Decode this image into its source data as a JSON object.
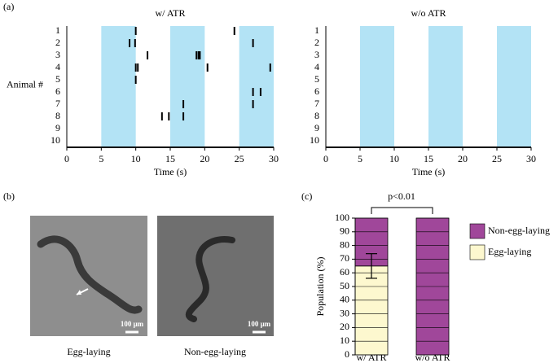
{
  "panel_labels": [
    "(a)",
    "(b)",
    "(c)"
  ],
  "images": [
    {
      "caption": "Egg-laying",
      "scale_bar": "100 μm"
    },
    {
      "caption": "Non-egg-laying",
      "scale_bar": "100 μm"
    }
  ],
  "chart_data": [
    {
      "type": "raster",
      "title": "w/ ATR",
      "xlabel": "Time (s)",
      "ylabel": "Animal #",
      "categories": [
        "1",
        "2",
        "3",
        "4",
        "5",
        "6",
        "7",
        "8",
        "9",
        "10"
      ],
      "events": [
        [
          10.0,
          24.3
        ],
        [
          9.1,
          9.9,
          27.0
        ],
        [
          11.7,
          18.8,
          19.1,
          19.3
        ],
        [
          10.0,
          10.3,
          20.4,
          29.5
        ],
        [
          10.0
        ],
        [
          27.0,
          28.1
        ],
        [
          16.9,
          27.0
        ],
        [
          13.8,
          14.8,
          16.9
        ],
        [],
        []
      ],
      "event_color": "#000000",
      "shaded": [
        [
          5,
          10
        ],
        [
          15,
          20
        ],
        [
          25,
          30
        ]
      ],
      "shade_color": "#b3e3f5",
      "xlim": [
        0,
        30
      ],
      "xticks": [
        0,
        5,
        10,
        15,
        20,
        25,
        30
      ]
    },
    {
      "type": "raster",
      "title": "w/o ATR",
      "xlabel": "Time (s)",
      "categories": [
        "1",
        "2",
        "3",
        "4",
        "5",
        "6",
        "7",
        "8",
        "9",
        "10"
      ],
      "events": [
        [],
        [],
        [],
        [],
        [],
        [],
        [],
        [],
        [],
        []
      ],
      "event_color": "#000000",
      "shaded": [
        [
          5,
          10
        ],
        [
          15,
          20
        ],
        [
          25,
          30
        ]
      ],
      "shade_color": "#b3e3f5",
      "xlim": [
        0,
        30
      ],
      "xticks": [
        0,
        5,
        10,
        15,
        20,
        25,
        30
      ]
    },
    {
      "type": "stacked_bar",
      "ylabel": "Population (%)",
      "annotation": "p<0.01",
      "categories": [
        "w/ ATR",
        "w/o ATR"
      ],
      "series": [
        {
          "name": "Egg-laying",
          "color": "#fdf8cf",
          "values": [
            65,
            0
          ],
          "errors": [
            9,
            null
          ]
        },
        {
          "name": "Non-egg-laying",
          "color": "#a0479a",
          "values": [
            35,
            100
          ]
        }
      ],
      "ylim": [
        0,
        100
      ],
      "yticks": [
        0,
        10,
        20,
        30,
        40,
        50,
        60,
        70,
        80,
        90,
        100
      ],
      "grid": true
    }
  ]
}
